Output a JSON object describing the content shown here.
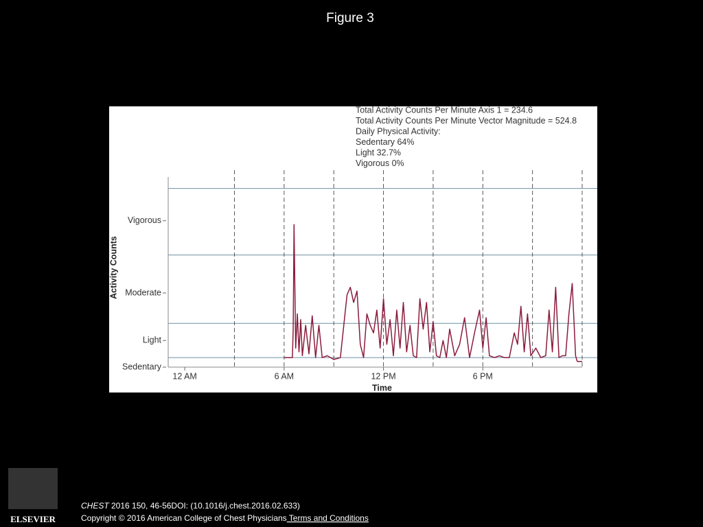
{
  "header": {
    "title": "Figure 3"
  },
  "chart_data": {
    "type": "line",
    "stats": [
      "Total Activity Counts Per Minute Axis 1 = 234.6",
      "Total Activity Counts Per Minute Vector Magnitude = 524.8",
      "Daily Physical Activity:",
      "Sedentary 64%",
      "Light 32.7%",
      "Vigorous 0%"
    ],
    "x_label": "Time",
    "y_label": "Activity Counts",
    "xlim": [
      -1,
      24
    ],
    "ylim": [
      0,
      100
    ],
    "xticks": [
      {
        "value": 0,
        "label": "12 AM"
      },
      {
        "value": 6,
        "label": "6 AM"
      },
      {
        "value": 12,
        "label": "12 PM"
      },
      {
        "value": 18,
        "label": "6 PM"
      }
    ],
    "xgrid": [
      3,
      6,
      9,
      12,
      15,
      18,
      21,
      24
    ],
    "yticks": [
      {
        "value": 0,
        "label": "Sedentary"
      },
      {
        "value": 14,
        "label": "Light"
      },
      {
        "value": 39,
        "label": "Moderate"
      },
      {
        "value": 77,
        "label": "Vigorous"
      }
    ],
    "reference_lines": [
      5,
      23,
      59,
      94
    ],
    "series": [
      {
        "color": "#8b1a3c",
        "x": [
          6,
          6.5,
          6.55,
          6.6,
          6.7,
          6.8,
          6.9,
          7.0,
          7.1,
          7.3,
          7.5,
          7.7,
          7.9,
          8.1,
          8.3,
          8.6,
          9.0,
          9.4,
          9.7,
          9.8,
          10.0,
          10.2,
          10.4,
          10.6,
          10.8,
          11.0,
          11.2,
          11.4,
          11.6,
          11.8,
          12.0,
          12.2,
          12.4,
          12.6,
          12.8,
          13.0,
          13.2,
          13.4,
          13.6,
          13.8,
          14.0,
          14.2,
          14.4,
          14.6,
          14.8,
          15.0,
          15.2,
          15.4,
          15.6,
          15.8,
          16.0,
          16.3,
          16.6,
          16.9,
          17.2,
          17.5,
          17.8,
          18.0,
          18.2,
          18.4,
          18.7,
          19.0,
          19.3,
          19.6,
          19.9,
          20.1,
          20.3,
          20.5,
          20.7,
          20.9,
          21.2,
          21.5,
          21.8,
          22.0,
          22.2,
          22.4,
          22.6,
          22.8,
          23.0,
          23.2,
          23.4,
          23.6,
          23.7,
          24.0
        ],
        "values": [
          5,
          5,
          20,
          75,
          10,
          28,
          8,
          25,
          6,
          22,
          7,
          27,
          5,
          22,
          5,
          6,
          4,
          5,
          30,
          38,
          42,
          34,
          40,
          12,
          5,
          28,
          22,
          18,
          30,
          10,
          36,
          12,
          25,
          6,
          30,
          10,
          34,
          8,
          22,
          6,
          5,
          36,
          20,
          34,
          8,
          24,
          6,
          5,
          14,
          5,
          20,
          6,
          12,
          26,
          5,
          18,
          30,
          10,
          26,
          6,
          5,
          6,
          5,
          5,
          18,
          12,
          32,
          8,
          28,
          6,
          10,
          5,
          6,
          30,
          8,
          42,
          5,
          6,
          6,
          28,
          44,
          6,
          3,
          3
        ]
      }
    ]
  },
  "footer": {
    "journal": "CHEST",
    "citation": " 2016 150, 46-56DOI: (10.1016/j.chest.2016.02.633)",
    "copyright": "Copyright © 2016 American College of Chest Physicians",
    "link": " Terms and Conditions",
    "logo": "ELSEVIER"
  }
}
